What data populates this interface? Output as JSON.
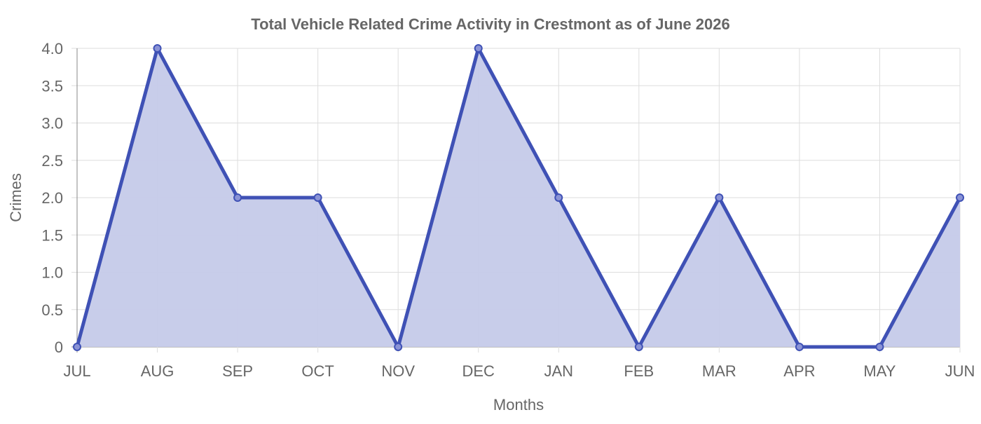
{
  "chart_data": {
    "type": "area",
    "title": "Total Vehicle Related Crime Activity in Crestmont as of June 2026",
    "xlabel": "Months",
    "ylabel": "Crimes",
    "categories": [
      "JUL",
      "AUG",
      "SEP",
      "OCT",
      "NOV",
      "DEC",
      "JAN",
      "FEB",
      "MAR",
      "APR",
      "MAY",
      "JUN"
    ],
    "series": [
      {
        "values": [
          0,
          4,
          2,
          2,
          0,
          4,
          2,
          0,
          2,
          0,
          0,
          2
        ],
        "line_color": "#3f51b5",
        "fill_color": "#c5cae9"
      }
    ],
    "ylim": [
      0,
      4
    ],
    "yticks": [
      "0",
      "0.5",
      "1.0",
      "1.5",
      "2.0",
      "2.5",
      "3.0",
      "3.5",
      "4.0"
    ],
    "ytick_values": [
      0,
      0.5,
      1,
      1.5,
      2,
      2.5,
      3,
      3.5,
      4
    ],
    "grid": true,
    "legend": "none"
  }
}
